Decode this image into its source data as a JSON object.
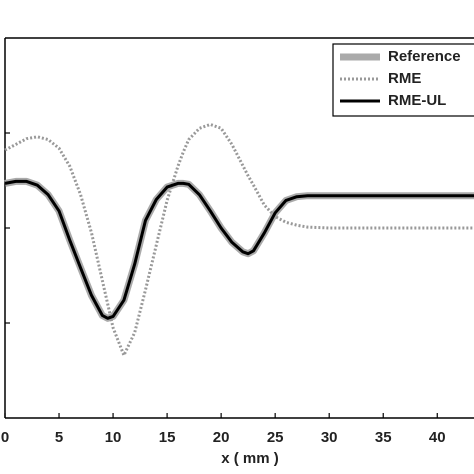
{
  "chart_data": {
    "type": "line",
    "x_label": "x ( mm )",
    "x": [
      0,
      1,
      2,
      3,
      4,
      5,
      6,
      7,
      8,
      9,
      9.5,
      10,
      11,
      12,
      13,
      14,
      15,
      16,
      16.5,
      17,
      18,
      19,
      20,
      21,
      22,
      22.5,
      23,
      24,
      25,
      26,
      27,
      28,
      30,
      35,
      40,
      43.4
    ],
    "series": [
      {
        "name": "Reference",
        "color": "#aaaaaa",
        "style": "solid",
        "values": [
          0.47,
          0.49,
          0.49,
          0.45,
          0.35,
          0.18,
          -0.13,
          -0.42,
          -0.71,
          -0.92,
          -0.95,
          -0.93,
          -0.76,
          -0.38,
          0.08,
          0.3,
          0.43,
          0.47,
          0.47,
          0.46,
          0.35,
          0.18,
          0,
          -0.15,
          -0.25,
          -0.27,
          -0.24,
          -0.05,
          0.16,
          0.29,
          0.33,
          0.34,
          0.34,
          0.34,
          0.34,
          0.34
        ]
      },
      {
        "name": "RME",
        "color": "#999999",
        "style": "dotted",
        "values": [
          0.82,
          0.88,
          0.94,
          0.96,
          0.93,
          0.84,
          0.65,
          0.35,
          -0.05,
          -0.55,
          -0.8,
          -1.05,
          -1.34,
          -1.1,
          -0.65,
          -0.18,
          0.29,
          0.65,
          0.8,
          0.93,
          1.05,
          1.09,
          1.05,
          0.88,
          0.66,
          0.55,
          0.45,
          0.24,
          0.12,
          0.06,
          0.03,
          0.01,
          0,
          0,
          0,
          0
        ]
      },
      {
        "name": "RME-UL",
        "color": "#000000",
        "style": "solid",
        "values": [
          0.47,
          0.49,
          0.49,
          0.45,
          0.35,
          0.18,
          -0.13,
          -0.42,
          -0.71,
          -0.92,
          -0.95,
          -0.93,
          -0.76,
          -0.38,
          0.08,
          0.3,
          0.43,
          0.47,
          0.47,
          0.46,
          0.35,
          0.18,
          0,
          -0.15,
          -0.25,
          -0.27,
          -0.24,
          -0.05,
          0.16,
          0.29,
          0.33,
          0.34,
          0.34,
          0.34,
          0.34,
          0.34
        ]
      }
    ],
    "xlim": [
      0,
      43.4
    ],
    "xticks": [
      0,
      5,
      10,
      15,
      20,
      25,
      30,
      35,
      40
    ],
    "ylim": [
      -2,
      2
    ],
    "yticks": [
      -1,
      0,
      1
    ],
    "legend": "top-right"
  }
}
